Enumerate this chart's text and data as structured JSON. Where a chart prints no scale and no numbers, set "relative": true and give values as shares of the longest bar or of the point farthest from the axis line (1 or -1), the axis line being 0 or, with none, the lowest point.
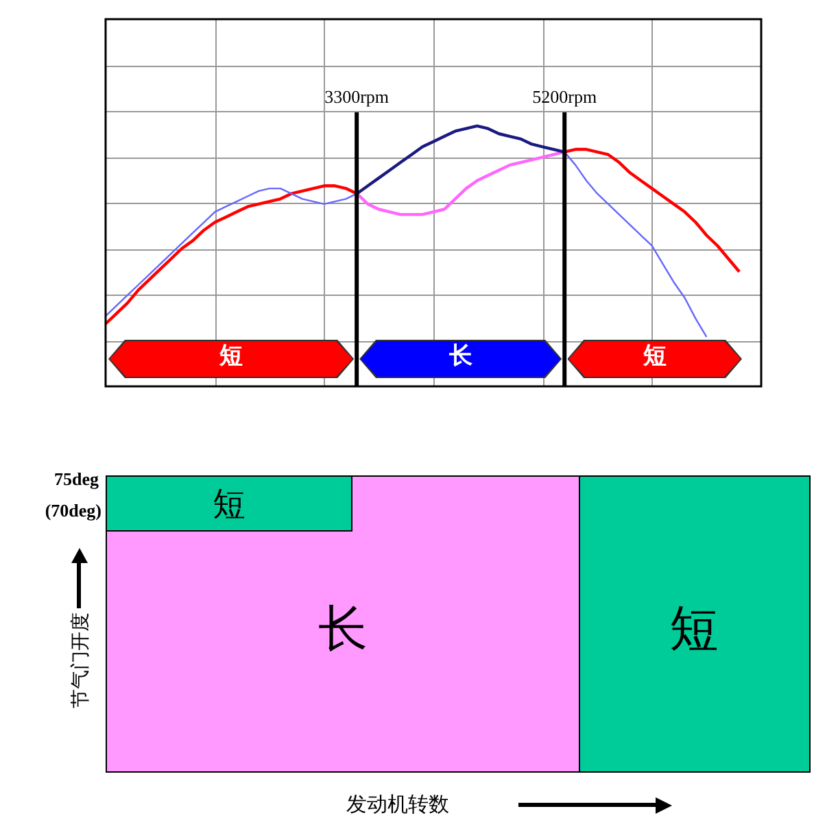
{
  "chart_data": [
    {
      "type": "line",
      "relative": true,
      "grid": true,
      "categories": [
        null,
        null,
        null,
        null,
        null,
        null,
        null,
        null,
        null,
        null,
        null,
        null,
        null,
        null,
        null,
        null,
        null,
        null,
        null,
        null,
        null,
        null,
        null,
        null,
        null,
        null,
        null,
        null,
        null,
        null,
        null,
        null,
        null,
        null,
        null,
        null,
        null,
        null,
        null,
        null,
        null,
        null,
        null,
        null,
        null,
        null,
        null,
        null,
        null,
        null,
        null,
        null,
        null,
        null,
        null,
        null,
        null,
        null,
        null,
        null,
        null
      ],
      "series": [
        {
          "color": "#6666ff",
          "values": [
            0.27,
            0.31,
            0.35,
            0.39,
            0.43,
            0.47,
            0.51,
            0.55,
            0.59,
            0.63,
            0.67,
            0.69,
            0.71,
            0.73,
            0.75,
            0.76,
            0.76,
            0.74,
            0.72,
            0.71,
            0.7,
            0.71,
            0.72,
            0.74,
            null,
            null,
            null,
            null,
            null,
            null,
            null,
            null,
            null,
            null,
            null,
            null,
            null,
            null,
            null,
            null,
            null,
            null,
            null,
            null,
            null,
            null,
            null,
            null,
            null,
            null,
            null,
            null,
            null,
            null,
            null,
            null,
            null,
            null,
            null,
            null,
            null
          ]
        },
        {
          "color": "#1a1a80",
          "values": [
            null,
            null,
            null,
            null,
            null,
            null,
            null,
            null,
            null,
            null,
            null,
            null,
            null,
            null,
            null,
            null,
            null,
            null,
            null,
            null,
            null,
            null,
            null,
            0.74,
            0.77,
            0.8,
            0.83,
            0.86,
            0.89,
            0.92,
            0.94,
            0.96,
            0.98,
            0.99,
            1.0,
            0.99,
            0.97,
            0.96,
            0.95,
            0.93,
            0.92,
            0.91,
            0.9,
            null,
            null,
            null,
            null,
            null,
            null,
            null,
            null,
            null,
            null,
            null,
            null,
            null,
            null,
            null,
            null,
            null,
            null
          ]
        },
        {
          "color": "#6666ff",
          "values": [
            null,
            null,
            null,
            null,
            null,
            null,
            null,
            null,
            null,
            null,
            null,
            null,
            null,
            null,
            null,
            null,
            null,
            null,
            null,
            null,
            null,
            null,
            null,
            null,
            null,
            null,
            null,
            null,
            null,
            null,
            null,
            null,
            null,
            null,
            null,
            null,
            null,
            null,
            null,
            null,
            null,
            null,
            0.9,
            0.85,
            0.79,
            0.74,
            0.7,
            0.66,
            0.62,
            0.58,
            0.54,
            0.47,
            0.4,
            0.34,
            0.26,
            0.19,
            null,
            null,
            null,
            null,
            null
          ]
        },
        {
          "color": "#ff0000",
          "values": [
            0.24,
            0.28,
            0.32,
            0.37,
            0.41,
            0.45,
            0.49,
            0.53,
            0.56,
            0.6,
            0.63,
            0.65,
            0.67,
            0.69,
            0.7,
            0.71,
            0.72,
            0.74,
            0.75,
            0.76,
            0.77,
            0.77,
            0.76,
            0.74,
            null,
            null,
            null,
            null,
            null,
            null,
            null,
            null,
            null,
            null,
            null,
            null,
            null,
            null,
            null,
            null,
            null,
            null,
            null,
            null,
            null,
            null,
            null,
            null,
            null,
            null,
            null,
            null,
            null,
            null,
            null,
            null,
            null,
            null,
            null,
            null,
            null
          ]
        },
        {
          "color": "#ff66ff",
          "values": [
            null,
            null,
            null,
            null,
            null,
            null,
            null,
            null,
            null,
            null,
            null,
            null,
            null,
            null,
            null,
            null,
            null,
            null,
            null,
            null,
            null,
            null,
            null,
            0.74,
            0.7,
            0.68,
            0.67,
            0.66,
            0.66,
            0.66,
            0.67,
            0.68,
            0.72,
            0.76,
            0.79,
            0.81,
            0.83,
            0.85,
            0.86,
            0.87,
            0.88,
            0.89,
            0.9,
            null,
            null,
            null,
            null,
            null,
            null,
            null,
            null,
            null,
            null,
            null,
            null,
            null,
            null,
            null,
            null,
            null,
            null
          ]
        },
        {
          "color": "#ff0000",
          "values": [
            null,
            null,
            null,
            null,
            null,
            null,
            null,
            null,
            null,
            null,
            null,
            null,
            null,
            null,
            null,
            null,
            null,
            null,
            null,
            null,
            null,
            null,
            null,
            null,
            null,
            null,
            null,
            null,
            null,
            null,
            null,
            null,
            null,
            null,
            null,
            null,
            null,
            null,
            null,
            null,
            null,
            null,
            0.9,
            0.91,
            0.91,
            0.9,
            0.89,
            0.86,
            0.82,
            0.79,
            0.76,
            0.73,
            0.7,
            0.67,
            0.63,
            0.58,
            0.54,
            0.49,
            0.44,
            null,
            null
          ]
        }
      ],
      "annotations": [
        "3300rpm",
        "5200rpm",
        "短",
        "长",
        "短"
      ]
    },
    {
      "type": "other",
      "xlabel": "发动机转数",
      "ylabel": "节气门开度",
      "annotations": [
        "75deg",
        "(70deg)",
        "短",
        "长",
        "短"
      ]
    }
  ]
}
